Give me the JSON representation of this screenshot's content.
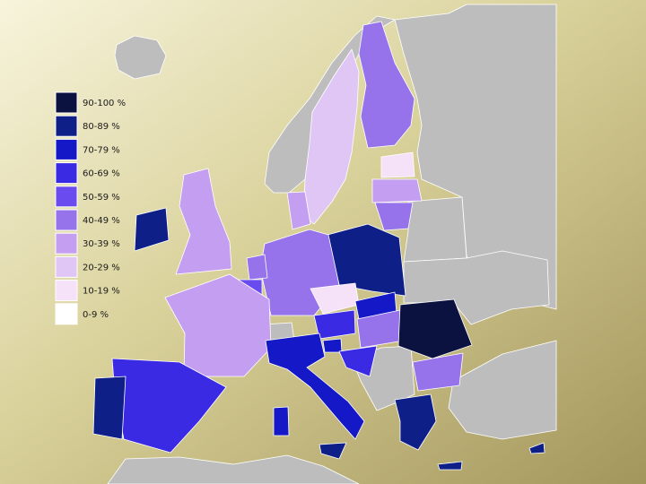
{
  "legend": {
    "items": [
      {
        "label": "90-100 %",
        "color": "#0b1240"
      },
      {
        "label": "80-89 %",
        "color": "#0e1f88"
      },
      {
        "label": "70-79 %",
        "color": "#1518c6"
      },
      {
        "label": "60-69 %",
        "color": "#3b2ae4"
      },
      {
        "label": "50-59 %",
        "color": "#6a4bef"
      },
      {
        "label": "40-49 %",
        "color": "#9673ea"
      },
      {
        "label": "30-39 %",
        "color": "#c49ef0"
      },
      {
        "label": "20-29 %",
        "color": "#e0c6f5"
      },
      {
        "label": "10-19 %",
        "color": "#f6e2f8"
      },
      {
        "label": "0-9 %",
        "color": "#ffffff"
      }
    ]
  }
}
